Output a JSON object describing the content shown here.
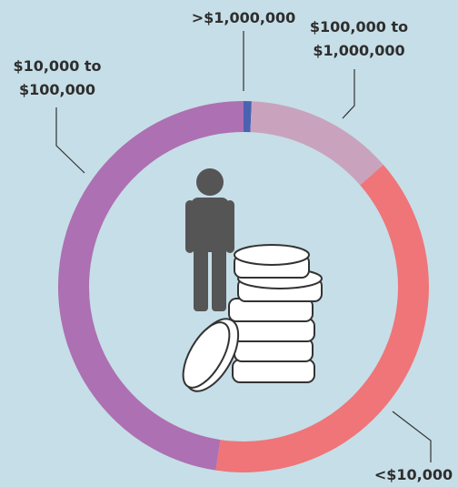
{
  "chart_data": {
    "type": "donut",
    "categories": [
      ">$1,000,000",
      "$100,000 to $1,000,000",
      "<$10,000",
      "$10,000 to $100,000"
    ],
    "values": [
      0.7,
      12.9,
      38.8,
      47.6
    ],
    "colors": [
      "#4a62b0",
      "#c9a3bd",
      "#ef7579",
      "#ad70b2"
    ]
  }
}
